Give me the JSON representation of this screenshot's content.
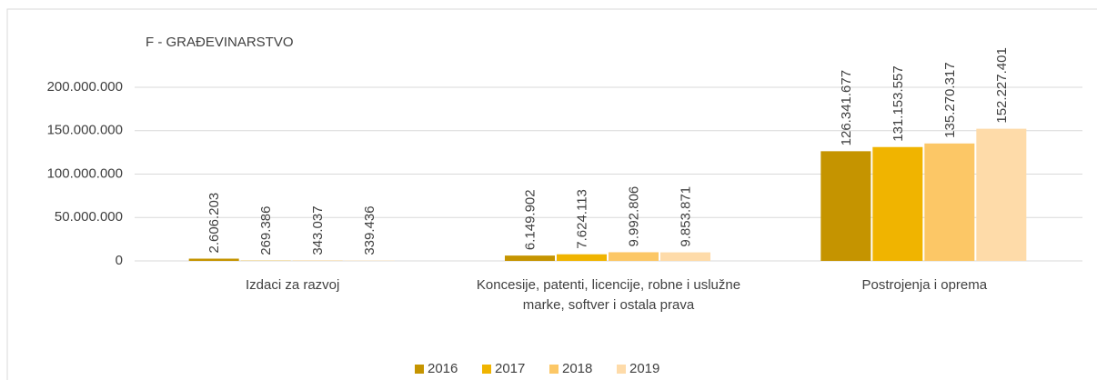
{
  "chart_data": {
    "type": "bar",
    "title": "F - GRAĐEVINARSTVO",
    "categories": [
      "Izdaci za razvoj",
      "Koncesije, patenti, licencije, robne i uslužne marke, softver i ostala prava",
      "Postrojenja i oprema"
    ],
    "series": [
      {
        "name": "2016",
        "color": "#c59400",
        "values": [
          2606203,
          6149902,
          126341677
        ],
        "value_labels": [
          "2.606.203",
          "6.149.902",
          "126.341.677"
        ]
      },
      {
        "name": "2017",
        "color": "#f0b400",
        "values": [
          269386,
          7624113,
          131153557
        ],
        "value_labels": [
          "269.386",
          "7.624.113",
          "131.153.557"
        ]
      },
      {
        "name": "2018",
        "color": "#fcc766",
        "values": [
          343037,
          9992806,
          135270317
        ],
        "value_labels": [
          "343.037",
          "9.992.806",
          "135.270.317"
        ]
      },
      {
        "name": "2019",
        "color": "#fedba9",
        "values": [
          339436,
          9853871,
          152227401
        ],
        "value_labels": [
          "339.436",
          "9.853.871",
          "152.227.401"
        ]
      }
    ],
    "ylim": [
      0,
      200000000
    ],
    "yticks": [
      0,
      {
        "value": 50000000,
        "label": "50.000.000"
      },
      {
        "value": 100000000,
        "label": "100.000.000"
      },
      {
        "value": 150000000,
        "label": "150.000.000"
      },
      {
        "value": 200000000,
        "label": "200.000.000"
      }
    ],
    "grid": true,
    "legend": "bottom"
  }
}
